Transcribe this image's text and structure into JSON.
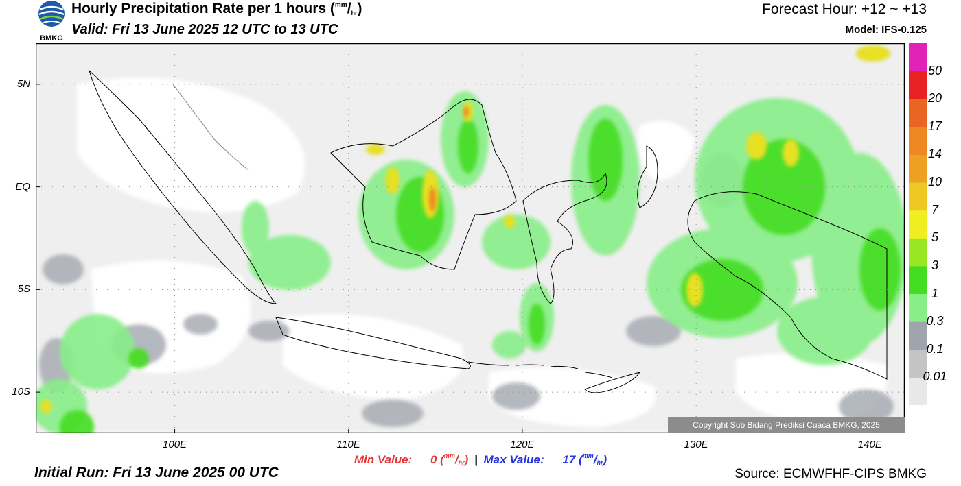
{
  "header": {
    "title_main": "Hourly Precipitation Rate per 1 hours (",
    "title_unit_num": "mm",
    "title_unit_den": "hr",
    "title_close": ")",
    "valid": "Valid: Fri 13 June 2025 12 UTC to 13 UTC",
    "forecast_hour": "Forecast Hour: +12 ~ +13",
    "model": "Model: IFS-0.125",
    "logo_text": "BMKG"
  },
  "map": {
    "lat_labels": [
      "5N",
      "EQ",
      "5S",
      "10S"
    ],
    "lon_labels": [
      "100E",
      "110E",
      "120E",
      "130E",
      "140E"
    ],
    "lat_values": [
      5,
      0,
      -5,
      -10
    ],
    "lon_values": [
      100,
      110,
      120,
      130,
      140
    ],
    "extent": {
      "lon_min": 92,
      "lon_max": 142,
      "lat_min": -12,
      "lat_max": 7
    }
  },
  "colorbar": {
    "levels": [
      "0.01",
      "0.1",
      "0.3",
      "1",
      "3",
      "5",
      "7",
      "10",
      "14",
      "17",
      "20",
      "50"
    ],
    "colors": [
      "#e8e8e8",
      "#c4c4c4",
      "#a0a4ac",
      "#88ee88",
      "#44dd22",
      "#99e622",
      "#eeee22",
      "#eec822",
      "#eea022",
      "#ee8822",
      "#e86622",
      "#e82222",
      "#e022b8"
    ]
  },
  "stats": {
    "min_label": "Min Value:",
    "min_value": "0",
    "max_label": "Max Value:",
    "max_value": "17",
    "unit_num": "mm",
    "unit_den": "hr",
    "separator": "|"
  },
  "footer": {
    "initial_run": "Initial Run: Fri 13 June 2025 00 UTC",
    "source": "Source: ECMWFHF-CIPS BMKG",
    "copyright": "Copyright Sub Bidang Prediksi Cuaca BMKG, 2025"
  }
}
